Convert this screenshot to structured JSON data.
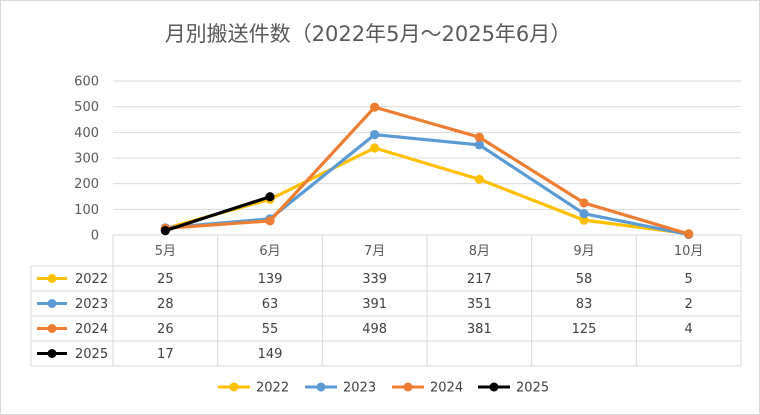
{
  "chart_data": {
    "type": "line",
    "title": "月別搬送件数（2022年5月～2025年6月）",
    "categories": [
      "5月",
      "6月",
      "7月",
      "8月",
      "9月",
      "10月"
    ],
    "ylim": [
      0,
      600
    ],
    "yticks": [
      0,
      100,
      200,
      300,
      400,
      500,
      600
    ],
    "grid": true,
    "legend_position": "bottom",
    "data_table": true,
    "series": [
      {
        "name": "2022",
        "color": "#FFC000",
        "values": [
          25,
          139,
          339,
          217,
          58,
          5
        ]
      },
      {
        "name": "2023",
        "color": "#5B9BD5",
        "values": [
          28,
          63,
          391,
          351,
          83,
          2
        ]
      },
      {
        "name": "2024",
        "color": "#ED7D31",
        "values": [
          26,
          55,
          498,
          381,
          125,
          4
        ]
      },
      {
        "name": "2025",
        "color": "#000000",
        "values": [
          17,
          149,
          null,
          null,
          null,
          null
        ]
      }
    ]
  }
}
